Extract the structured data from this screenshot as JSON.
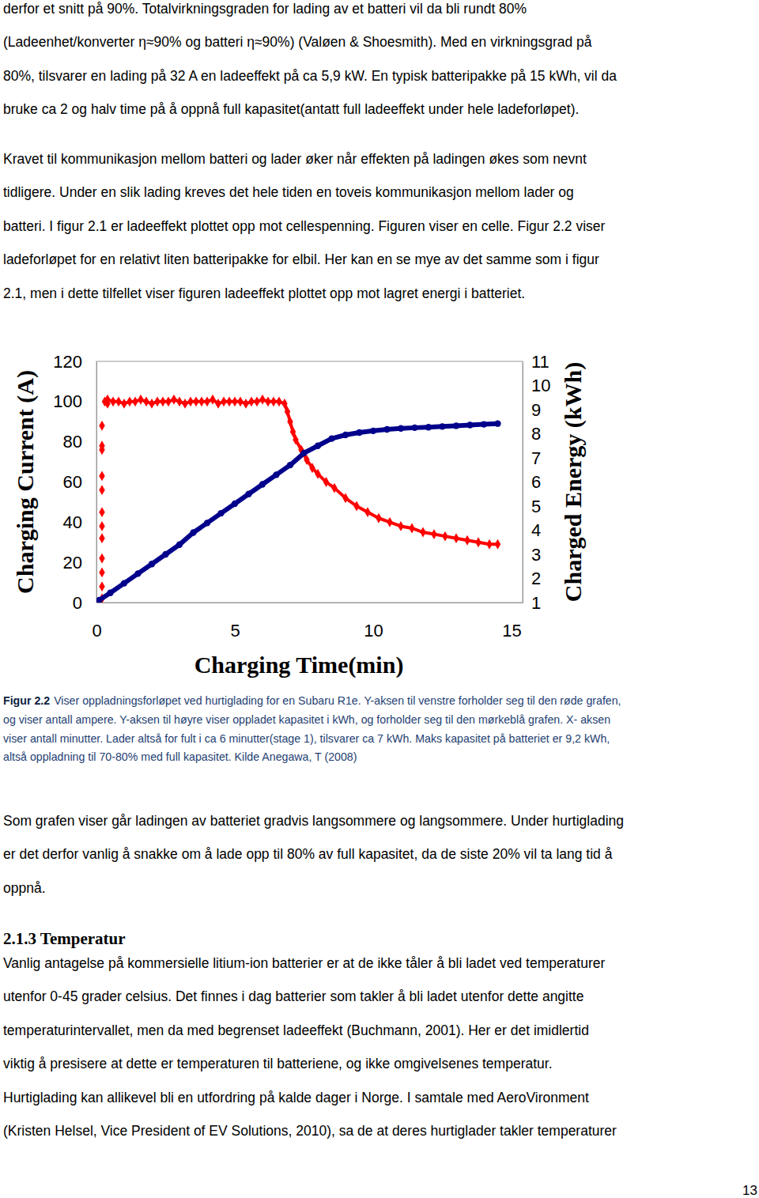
{
  "body_top": [
    [
      "derfor et snitt på 90%. Totalvirkningsgraden for lading av et batteri vil da bli rundt 80%",
      "(Ladeenhet/konverter η≈90% og batteri η≈90%) (Valøen & Shoesmith). Med en virkningsgrad på",
      "80%, tilsvarer en lading på 32 A en ladeeffekt på ca 5,9 kW. En typisk batteripakke på 15 kWh, vil da",
      "bruke ca 2 og halv time på å oppnå full kapasitet(antatt full ladeeffekt under hele ladeforløpet)."
    ],
    [
      "Kravet til kommunikasjon mellom batteri og lader øker når effekten på ladingen økes som nevnt",
      "tidligere. Under en slik lading kreves det hele tiden en toveis kommunikasjon mellom lader og",
      "batteri. I figur 2.1 er ladeeffekt plottet opp mot cellespenning. Figuren viser en celle. Figur 2.2 viser",
      "ladeforløpet for en relativt liten batteripakke for elbil. Her kan en se mye av det samme som i figur",
      "2.1, men i dette tilfellet viser figuren ladeeffekt plottet opp mot lagret energi i batteriet."
    ]
  ],
  "chart_data": {
    "type": "scatter",
    "x_label": "Charging Time(min)",
    "y_label": "Charging Current (A)",
    "y2_label": "Charged Energy (kWh)",
    "xlim": [
      0,
      15.4
    ],
    "xticks": [
      0,
      5,
      10,
      15
    ],
    "ylim": [
      0,
      120
    ],
    "yticks": [
      0,
      20,
      40,
      60,
      80,
      100,
      120
    ],
    "y2lim": [
      1,
      11
    ],
    "y2ticks": [
      1,
      2,
      3,
      4,
      5,
      6,
      7,
      8,
      9,
      10,
      11
    ],
    "series": [
      {
        "color": "#ff0000",
        "marker": "diamond",
        "x": [
          0.2,
          0.2,
          0.2,
          0.2,
          0.2,
          0.2,
          0.2,
          0.2,
          0.2,
          0.2,
          0.2,
          0.2,
          0.3,
          0.4
        ],
        "values": [
          2,
          8,
          15,
          22,
          32,
          38,
          45,
          56,
          63,
          76,
          78,
          88,
          100,
          99
        ]
      },
      {
        "color": "#ff0000",
        "marker": "diamond",
        "line_style": "solid",
        "x": [
          0.4,
          0.6,
          0.8,
          1.0,
          1.2,
          1.4,
          1.6,
          1.8,
          2.0,
          2.2,
          2.4,
          2.6,
          2.8,
          3.0,
          3.2,
          3.4,
          3.6,
          3.8,
          4.0,
          4.2,
          4.4,
          4.6,
          4.8,
          5.0,
          5.2,
          5.4,
          5.6,
          5.8,
          6.0,
          6.2,
          6.4,
          6.6,
          6.8,
          6.9,
          7.0,
          7.1,
          7.2,
          7.4,
          7.6,
          7.8,
          8.0,
          8.3,
          8.6,
          9.0,
          9.4,
          9.8,
          10.2,
          10.6,
          11.0,
          11.4,
          11.8,
          12.2,
          12.6,
          13.0,
          13.4,
          13.8,
          14.2,
          14.5
        ],
        "values": [
          101,
          100,
          100,
          99,
          100,
          100,
          101,
          100,
          99,
          100,
          100,
          100,
          101,
          100,
          99,
          100,
          100,
          100,
          100,
          101,
          99,
          100,
          100,
          100,
          100,
          99,
          100,
          100,
          101,
          100,
          100,
          100,
          99,
          95,
          90,
          85,
          81,
          76,
          71,
          67,
          64,
          60,
          57,
          52,
          48,
          45,
          42,
          40,
          38,
          37,
          35,
          34,
          33,
          32,
          31,
          30,
          29,
          29
        ]
      },
      {
        "color": "#00008b",
        "marker": "circle",
        "line_style": "solid",
        "axis": "y2",
        "x": [
          0.1,
          0.5,
          1.0,
          1.5,
          2.0,
          2.5,
          3.0,
          3.5,
          4.0,
          4.5,
          5.0,
          5.5,
          6.0,
          6.5,
          7.0,
          7.5,
          8.0,
          8.5,
          9.0,
          9.5,
          10.0,
          10.5,
          11.0,
          11.5,
          12.0,
          12.5,
          13.0,
          13.5,
          14.0,
          14.5
        ],
        "values": [
          1.1,
          1.4,
          1.8,
          2.2,
          2.6,
          3.0,
          3.4,
          3.9,
          4.3,
          4.7,
          5.1,
          5.5,
          5.9,
          6.3,
          6.7,
          7.2,
          7.5,
          7.8,
          7.95,
          8.05,
          8.12,
          8.18,
          8.22,
          8.25,
          8.27,
          8.3,
          8.33,
          8.36,
          8.39,
          8.42
        ]
      }
    ]
  },
  "caption": {
    "label": "Figur 2.2",
    "lines": [
      "Viser oppladningsforløpet ved hurtiglading for en Subaru R1e. Y-aksen til venstre forholder seg til den røde grafen,",
      "og viser antall ampere. Y-aksen til høyre viser oppladet kapasitet i kWh, og forholder seg til den mørkeblå grafen.  X- aksen",
      "viser antall minutter. Lader altså for fult i ca 6 minutter(stage 1), tilsvarer ca 7 kWh. Maks kapasitet på batteriet er 9,2 kWh,",
      "altså oppladning til 70-80% med full kapasitet.  Kilde Anegawa, T (2008)"
    ]
  },
  "body_after": [
    "Som grafen viser går ladingen av batteriet gradvis langsommere og langsommere. Under hurtiglading",
    "er det derfor vanlig å snakke om å lade opp til 80% av full kapasitet, da de siste 20% vil ta lang tid å",
    "oppnå."
  ],
  "heading": "2.1.3 Temperatur",
  "body_temperature": [
    "Vanlig antagelse på kommersielle litium-ion batterier er at de ikke tåler å bli ladet ved temperaturer",
    "utenfor 0-45 grader celsius. Det finnes i dag batterier som takler å bli ladet utenfor dette angitte",
    "temperaturintervallet, men da med begrenset ladeeffekt (Buchmann, 2001). Her er det imidlertid",
    "viktig å presisere at dette er temperaturen til batteriene, og ikke omgivelsenes temperatur.",
    "Hurtiglading kan allikevel bli en utfordring på kalde dager i Norge. I samtale med AeroVironment",
    "(Kristen Helsel, Vice President of EV Solutions, 2010), sa de at deres hurtiglader takler temperaturer"
  ],
  "page_number": 13
}
